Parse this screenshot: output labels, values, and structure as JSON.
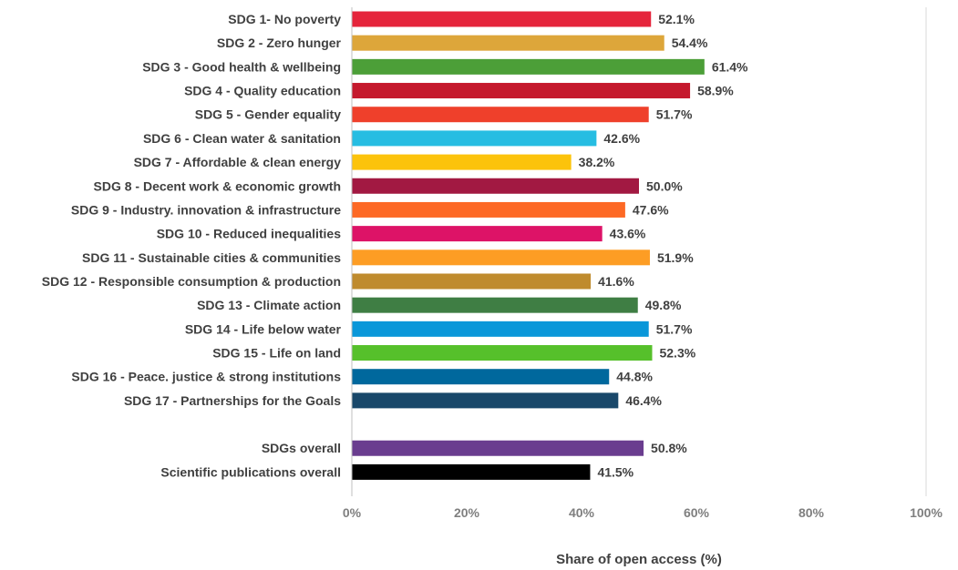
{
  "chart_data": {
    "type": "bar",
    "orientation": "horizontal",
    "categories": [
      "SDG 1- No poverty",
      "SDG 2 - Zero hunger",
      "SDG 3 - Good health & wellbeing",
      "SDG 4 - Quality education",
      "SDG 5 - Gender equality",
      "SDG 6 - Clean water & sanitation",
      "SDG 7 - Affordable & clean energy",
      "SDG 8 - Decent work & economic growth",
      "SDG 9 - Industry. innovation & infrastructure",
      "SDG 10 - Reduced inequalities",
      "SDG 11 - Sustainable cities & communities",
      "SDG 12 - Responsible consumption & production",
      "SDG 13 - Climate action",
      "SDG 14 - Life below water",
      "SDG 15 - Life on land",
      "SDG 16 - Peace. justice & strong institutions",
      "SDG 17 - Partnerships for the Goals",
      "",
      "SDGs overall",
      "Scientific publications overall"
    ],
    "values": [
      52.1,
      54.4,
      61.4,
      58.9,
      51.7,
      42.6,
      38.2,
      50.0,
      47.6,
      43.6,
      51.9,
      41.6,
      49.8,
      51.7,
      52.3,
      44.8,
      46.4,
      null,
      50.8,
      41.5
    ],
    "value_labels": [
      "52.1%",
      "54.4%",
      "61.4%",
      "58.9%",
      "51.7%",
      "42.6%",
      "38.2%",
      "50.0%",
      "47.6%",
      "43.6%",
      "51.9%",
      "41.6%",
      "49.8%",
      "51.7%",
      "52.3%",
      "44.8%",
      "46.4%",
      "",
      "50.8%",
      "41.5%"
    ],
    "colors": [
      "#e5243b",
      "#dda63a",
      "#4c9f38",
      "#c5192d",
      "#ef402b",
      "#26bde2",
      "#fcc30b",
      "#a21942",
      "#fd6925",
      "#dd1367",
      "#fd9d24",
      "#bf8b2e",
      "#3f7e44",
      "#0a97d9",
      "#56c02b",
      "#00689d",
      "#19486a",
      "#ffffff",
      "#6a3d8f",
      "#000000"
    ],
    "x_ticks": [
      "0%",
      "20%",
      "40%",
      "60%",
      "80%",
      "100%"
    ],
    "xlim": [
      0,
      100
    ],
    "xlabel": "Share of open access (%)",
    "ylabel": "",
    "title": "",
    "grid": false,
    "legend": "none"
  }
}
